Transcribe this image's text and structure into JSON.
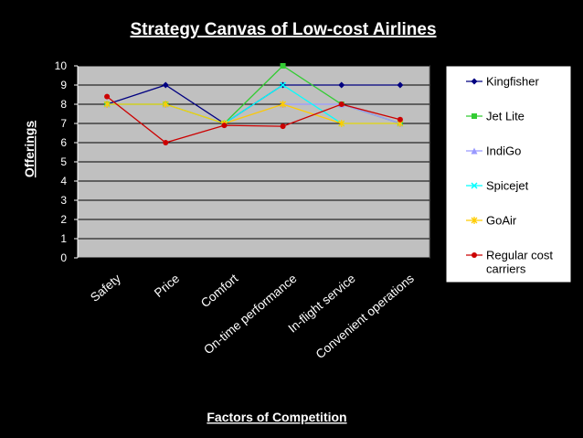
{
  "chart_data": {
    "type": "line",
    "title": "Strategy Canvas of Low-cost Airlines",
    "xlabel": "Factors of Competition",
    "ylabel": "Offerings",
    "categories": [
      "Safety",
      "Price",
      "Comfort",
      "On-time performance",
      "In-flight service",
      "Convenient operations"
    ],
    "ylim": [
      0,
      10
    ],
    "yticks": [
      "0",
      "1",
      "2",
      "3",
      "4",
      "5",
      "6",
      "7",
      "8",
      "9",
      "10"
    ],
    "grid": true,
    "legend": "right",
    "plot_background": "#c0c0c0",
    "gridline_color": "#000000",
    "series": [
      {
        "name": "Kingfisher",
        "color": "#000080",
        "marker": "diamond",
        "values": [
          8,
          9,
          7,
          9,
          9,
          9
        ]
      },
      {
        "name": "Jet Lite",
        "color": "#33cc33",
        "marker": "square",
        "values": [
          8,
          8,
          7,
          10,
          8,
          7
        ]
      },
      {
        "name": "IndiGo",
        "color": "#9999ff",
        "marker": "triangle",
        "values": [
          8,
          8,
          7,
          8,
          8,
          7
        ]
      },
      {
        "name": "Spicejet",
        "color": "#00ffff",
        "marker": "x",
        "values": [
          8,
          8,
          7,
          9,
          7,
          7
        ]
      },
      {
        "name": "GoAir",
        "color": "#ffcc00",
        "marker": "star",
        "values": [
          8,
          8,
          7,
          8,
          7,
          7
        ]
      },
      {
        "name": "Regular cost carriers",
        "color": "#cc0000",
        "marker": "circle",
        "values": [
          8.4,
          6,
          6.9,
          6.85,
          8,
          7.2
        ]
      }
    ]
  }
}
